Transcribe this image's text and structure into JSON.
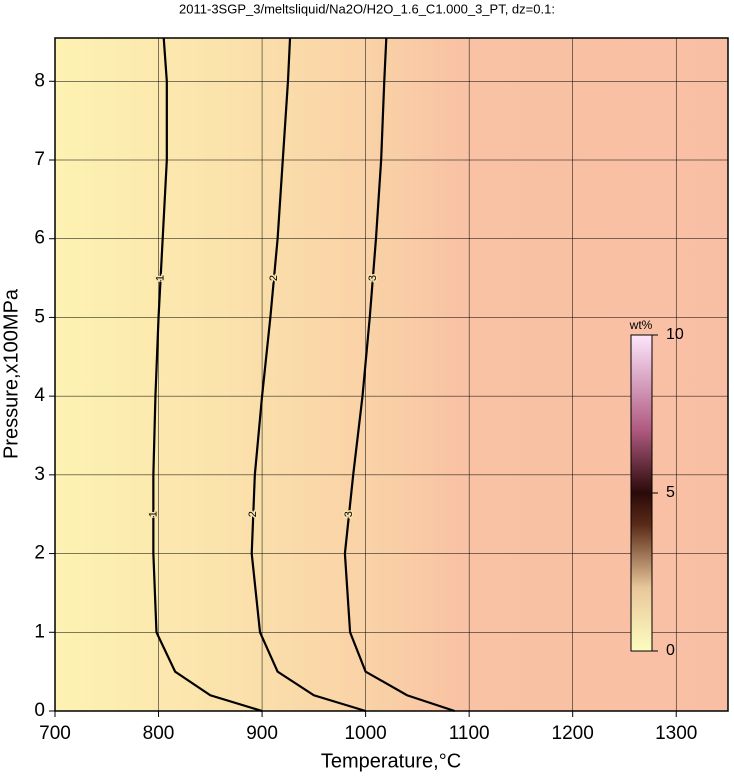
{
  "chart_data": {
    "type": "contour",
    "title": "2011-3SGP_3/meltsliquid/Na2O/H2O_1.6_C1.000_3_PT, dz=0.1:",
    "xlabel": "Temperature,°C",
    "ylabel": "Pressure,x100MPa",
    "xlim": [
      700,
      1350
    ],
    "ylim": [
      0,
      8.55
    ],
    "xticks": [
      700,
      800,
      900,
      1000,
      1100,
      1200,
      1300
    ],
    "yticks": [
      0,
      1,
      2,
      3,
      4,
      5,
      6,
      7,
      8
    ],
    "grid": true,
    "colorbar": {
      "label": "wt%",
      "lim": [
        0,
        10
      ],
      "ticks": [
        0,
        5,
        10
      ]
    },
    "contours": [
      {
        "level": 1,
        "x": [
          900,
          850,
          816,
          798,
          795,
          795,
          797,
          800,
          804,
          808,
          808,
          805
        ],
        "y": [
          0,
          0.2,
          0.5,
          1,
          2,
          3,
          4,
          5,
          6,
          7,
          8,
          8.55
        ]
      },
      {
        "level": 2,
        "x": [
          1000,
          950,
          915,
          898,
          890,
          893,
          900,
          908,
          915,
          920,
          925,
          927
        ],
        "y": [
          0,
          0.2,
          0.5,
          1,
          2,
          3,
          4,
          5,
          6,
          7,
          8,
          8.55
        ]
      },
      {
        "level": 3,
        "x": [
          1086,
          1040,
          1000,
          985,
          980,
          988,
          997,
          1004,
          1010,
          1015,
          1018,
          1020
        ],
        "y": [
          0,
          0.2,
          0.5,
          1,
          2,
          3,
          4,
          5,
          6,
          7,
          8,
          8.55
        ]
      }
    ]
  }
}
